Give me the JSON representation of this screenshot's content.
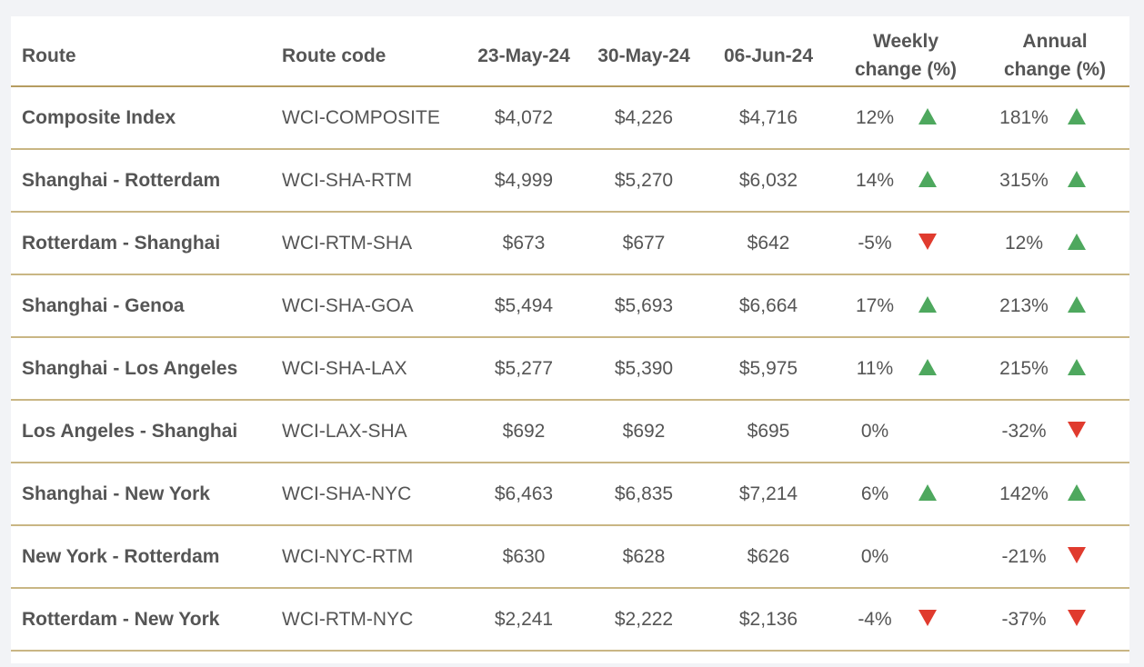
{
  "chart_data": {
    "type": "table",
    "columns": [
      "Route",
      "Route code",
      "23-May-24",
      "30-May-24",
      "06-Jun-24",
      "Weekly change (%)",
      "Annual change (%)"
    ],
    "rows": [
      {
        "route": "Composite Index",
        "code": "WCI-COMPOSITE",
        "d1": "$4,072",
        "d2": "$4,226",
        "d3": "$4,716",
        "weekly": "12%",
        "weekly_dir": "up",
        "annual": "181%",
        "annual_dir": "up"
      },
      {
        "route": "Shanghai - Rotterdam",
        "code": "WCI-SHA-RTM",
        "d1": "$4,999",
        "d2": "$5,270",
        "d3": "$6,032",
        "weekly": "14%",
        "weekly_dir": "up",
        "annual": "315%",
        "annual_dir": "up"
      },
      {
        "route": "Rotterdam - Shanghai",
        "code": "WCI-RTM-SHA",
        "d1": "$673",
        "d2": "$677",
        "d3": "$642",
        "weekly": "-5%",
        "weekly_dir": "down",
        "annual": "12%",
        "annual_dir": "up"
      },
      {
        "route": "Shanghai - Genoa",
        "code": "WCI-SHA-GOA",
        "d1": "$5,494",
        "d2": "$5,693",
        "d3": "$6,664",
        "weekly": "17%",
        "weekly_dir": "up",
        "annual": "213%",
        "annual_dir": "up"
      },
      {
        "route": "Shanghai - Los Angeles",
        "code": "WCI-SHA-LAX",
        "d1": "$5,277",
        "d2": "$5,390",
        "d3": "$5,975",
        "weekly": "11%",
        "weekly_dir": "up",
        "annual": "215%",
        "annual_dir": "up"
      },
      {
        "route": "Los Angeles - Shanghai",
        "code": "WCI-LAX-SHA",
        "d1": "$692",
        "d2": "$692",
        "d3": "$695",
        "weekly": "0%",
        "weekly_dir": "none",
        "annual": "-32%",
        "annual_dir": "down"
      },
      {
        "route": "Shanghai - New York",
        "code": "WCI-SHA-NYC",
        "d1": "$6,463",
        "d2": "$6,835",
        "d3": "$7,214",
        "weekly": "6%",
        "weekly_dir": "up",
        "annual": "142%",
        "annual_dir": "up"
      },
      {
        "route": "New York - Rotterdam",
        "code": "WCI-NYC-RTM",
        "d1": "$630",
        "d2": "$628",
        "d3": "$626",
        "weekly": "0%",
        "weekly_dir": "none",
        "annual": "-21%",
        "annual_dir": "down"
      },
      {
        "route": "Rotterdam - New York",
        "code": "WCI-RTM-NYC",
        "d1": "$2,241",
        "d2": "$2,222",
        "d3": "$2,136",
        "weekly": "-4%",
        "weekly_dir": "down",
        "annual": "-37%",
        "annual_dir": "down"
      }
    ],
    "colors": {
      "up": "#4ea85e",
      "down": "#e03b2e",
      "rule": "#c9b684",
      "text": "#555555"
    }
  },
  "header": {
    "route": "Route",
    "code": "Route code",
    "d1": "23-May-24",
    "d2": "30-May-24",
    "d3": "06-Jun-24",
    "weekly_line1": "Weekly",
    "weekly_line2": "change (%)",
    "annual_line1": "Annual",
    "annual_line2": "change (%)"
  }
}
